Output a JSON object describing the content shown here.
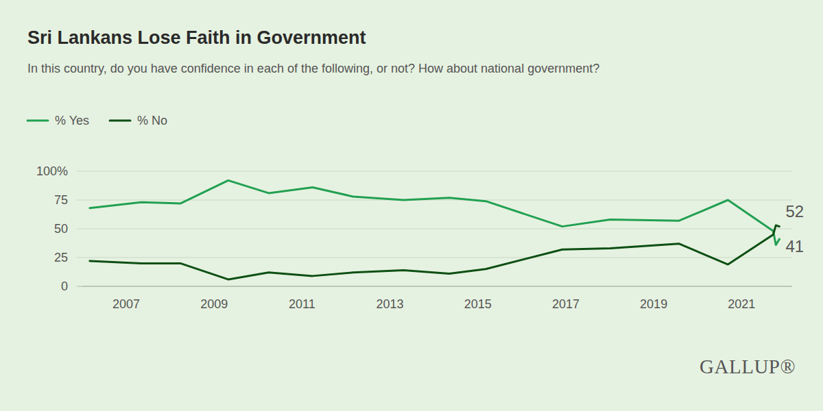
{
  "chart_data": {
    "type": "line",
    "title": "Sri Lankans Lose Faith in Government",
    "subtitle": "In this country, do you have confidence in each of the following, or not? How about national government?",
    "source": "GALLUP®",
    "x": [
      2006.17,
      2007.34,
      2008.23,
      2009.32,
      2010.24,
      2011.24,
      2012.16,
      2013.31,
      2014.35,
      2015.18,
      2016.92,
      2018.01,
      2019.58,
      2020.69,
      2021.72,
      2021.78,
      2021.86
    ],
    "series": [
      {
        "name": "% Yes",
        "color": "#22a052",
        "values": [
          68,
          73,
          72,
          92,
          81,
          86,
          78,
          75,
          77,
          74,
          52,
          58,
          57,
          75,
          48,
          36,
          41
        ]
      },
      {
        "name": "% No",
        "color": "#0d4f14",
        "values": [
          22,
          20,
          20,
          6,
          12,
          9,
          12,
          14,
          11,
          15,
          32,
          33,
          37,
          19,
          45,
          53,
          52
        ]
      }
    ],
    "annotations": [
      {
        "text": "52",
        "x": 2021.86,
        "y": 52
      },
      {
        "text": "41",
        "x": 2021.86,
        "y": 41
      }
    ],
    "xlim": [
      2006,
      2022.15
    ],
    "xticks": [
      2007,
      2009,
      2011,
      2013,
      2015,
      2017,
      2019,
      2021
    ],
    "ylim": [
      0,
      100
    ],
    "yticks": [
      0,
      25,
      50,
      75,
      {
        "value": 100,
        "label": "100%"
      }
    ],
    "grid": true,
    "legend": "top-left"
  }
}
